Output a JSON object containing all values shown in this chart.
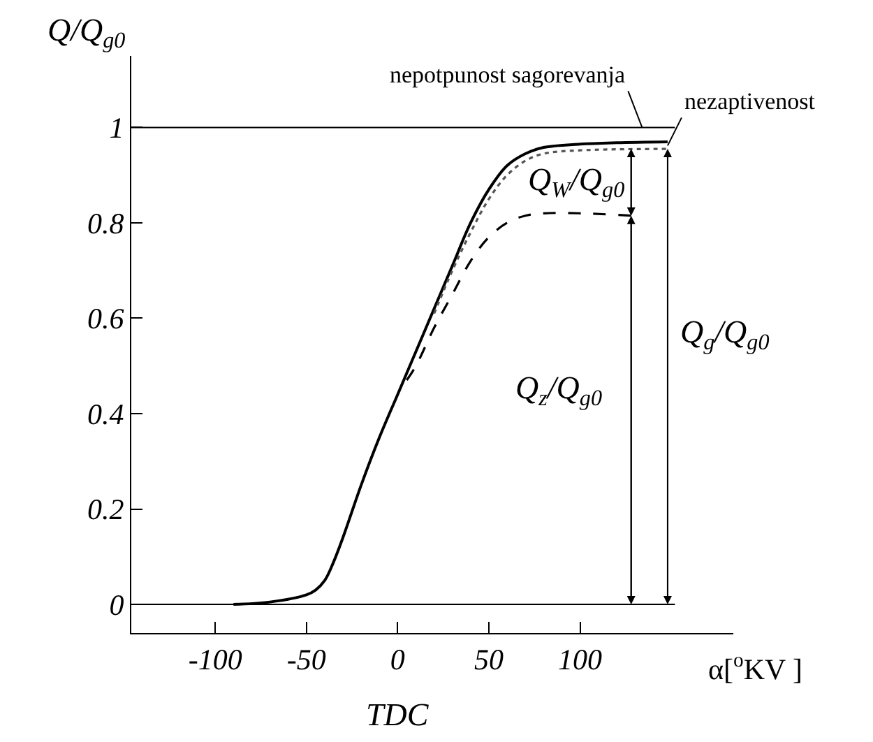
{
  "chart_data": {
    "type": "line",
    "xlabel": "α[$^{o}$KV ]",
    "ylabel": "Q/Q$_{g0}$",
    "xlim": [
      -146,
      184
    ],
    "ylim": [
      -0.06,
      1.15
    ],
    "xticks": [
      -100,
      -50,
      0,
      50,
      100
    ],
    "yticks": [
      0,
      0.2,
      0.4,
      0.6,
      0.8,
      1
    ],
    "grid": false,
    "legend": false,
    "marker": "none",
    "series": [
      {
        "color": "#000000",
        "line_style": "solid",
        "x": [
          -90,
          -70,
          -50,
          -45,
          -40,
          -35,
          -30,
          -20,
          -10,
          0,
          10,
          20,
          30,
          40,
          50,
          60,
          70,
          80,
          100,
          120,
          148
        ],
        "values": [
          0,
          0.005,
          0.02,
          0.03,
          0.05,
          0.09,
          0.14,
          0.25,
          0.35,
          0.44,
          0.53,
          0.62,
          0.71,
          0.8,
          0.87,
          0.92,
          0.945,
          0.958,
          0.965,
          0.968,
          0.97
        ]
      },
      {
        "color": "#555555",
        "line_style": "dotted",
        "x": [
          20,
          30,
          40,
          50,
          60,
          70,
          80,
          100,
          148
        ],
        "values": [
          0.61,
          0.7,
          0.78,
          0.85,
          0.9,
          0.93,
          0.945,
          0.952,
          0.955
        ]
      },
      {
        "color": "#000000",
        "line_style": "dashed",
        "x": [
          5,
          10,
          20,
          30,
          40,
          50,
          60,
          70,
          80,
          100,
          128
        ],
        "values": [
          0.47,
          0.5,
          0.58,
          0.65,
          0.72,
          0.77,
          0.8,
          0.815,
          0.82,
          0.82,
          0.815
        ]
      }
    ],
    "ref_lines": [
      {
        "axis": "y",
        "value": 1
      },
      {
        "axis": "y",
        "value": 0
      }
    ],
    "annotations": [
      {
        "text": "nepotpunost sagorevanja",
        "x": 134,
        "y": 1
      },
      {
        "text": "nezaptivenost",
        "x": 148,
        "y": 0.962
      },
      "Q$_{W}$/Q$_{g0}$",
      "Q$_{z}$/Q$_{g0}$",
      "Q$_{g}$/Q$_{g0}$",
      "TDC"
    ]
  }
}
